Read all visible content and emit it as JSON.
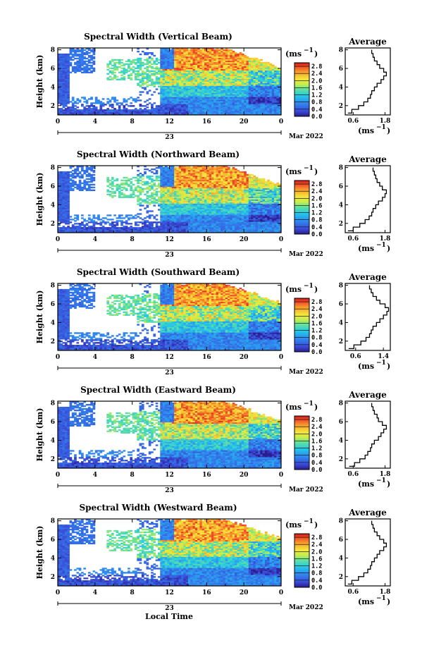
{
  "figure": {
    "xlabel_bottom": "Local Time",
    "unit_label": "(ms",
    "unit_exp": "−1",
    "avg_title": "Average",
    "date_label": "Mar 2022",
    "day_label": "23"
  },
  "chart_data": [
    {
      "type": "heatmap",
      "title": "Spectral Width (Vertical Beam)",
      "ylabel": "Height (km)",
      "x_ticks": [
        "0",
        "4",
        "8",
        "12",
        "16",
        "20",
        "0"
      ],
      "y_ticks": [
        "2",
        "4",
        "6",
        "8"
      ],
      "xlim": [
        0,
        24
      ],
      "ylim": [
        1,
        8.2
      ],
      "colorbar": {
        "ticks": [
          "0.0",
          "0.4",
          "0.8",
          "1.2",
          "1.6",
          "2.0",
          "2.4",
          "2.8"
        ],
        "range": [
          0,
          3.0
        ]
      },
      "profile": {
        "title": "Average",
        "x_ticks": [
          "0.6",
          "1.8"
        ],
        "xlim": [
          0.3,
          2.0
        ],
        "points": [
          [
            0.4,
            1.2
          ],
          [
            0.55,
            1.6
          ],
          [
            0.8,
            2.0
          ],
          [
            1.0,
            2.4
          ],
          [
            1.15,
            2.8
          ],
          [
            1.25,
            3.2
          ],
          [
            1.3,
            3.6
          ],
          [
            1.4,
            4.0
          ],
          [
            1.5,
            4.4
          ],
          [
            1.65,
            4.8
          ],
          [
            1.75,
            5.2
          ],
          [
            1.85,
            5.6
          ],
          [
            1.75,
            6.0
          ],
          [
            1.6,
            6.4
          ],
          [
            1.5,
            6.8
          ],
          [
            1.4,
            7.2
          ],
          [
            1.35,
            7.6
          ],
          [
            1.3,
            8.0
          ]
        ]
      }
    },
    {
      "type": "heatmap",
      "title": "Spectral Width (Northward Beam)",
      "ylabel": "Height (km)",
      "x_ticks": [
        "0",
        "4",
        "8",
        "12",
        "16",
        "20",
        "0"
      ],
      "y_ticks": [
        "2",
        "4",
        "6",
        "8"
      ],
      "xlim": [
        0,
        24
      ],
      "ylim": [
        1,
        8.2
      ],
      "colorbar": {
        "ticks": [
          "0.0",
          "0.4",
          "0.8",
          "1.2",
          "1.6",
          "2.0",
          "2.4",
          "2.8"
        ],
        "range": [
          0,
          3.0
        ]
      },
      "profile": {
        "title": "Average",
        "x_ticks": [
          "0.6",
          "1.8"
        ],
        "xlim": [
          0.3,
          2.0
        ],
        "points": [
          [
            0.4,
            1.2
          ],
          [
            0.6,
            1.6
          ],
          [
            0.85,
            2.0
          ],
          [
            1.05,
            2.4
          ],
          [
            1.2,
            2.8
          ],
          [
            1.3,
            3.2
          ],
          [
            1.35,
            3.6
          ],
          [
            1.45,
            4.0
          ],
          [
            1.55,
            4.4
          ],
          [
            1.7,
            4.8
          ],
          [
            1.8,
            5.2
          ],
          [
            1.85,
            5.6
          ],
          [
            1.7,
            6.0
          ],
          [
            1.6,
            6.4
          ],
          [
            1.5,
            6.8
          ],
          [
            1.45,
            7.2
          ],
          [
            1.4,
            7.6
          ],
          [
            1.35,
            8.0
          ]
        ]
      }
    },
    {
      "type": "heatmap",
      "title": "Spectral Width (Southward Beam)",
      "ylabel": "Height (km)",
      "x_ticks": [
        "0",
        "4",
        "8",
        "12",
        "16",
        "20",
        "0"
      ],
      "y_ticks": [
        "2",
        "4",
        "6",
        "8"
      ],
      "xlim": [
        0,
        24
      ],
      "ylim": [
        1,
        8.2
      ],
      "colorbar": {
        "ticks": [
          "0.0",
          "0.4",
          "0.8",
          "1.2",
          "1.6",
          "2.0",
          "2.4",
          "2.8"
        ],
        "range": [
          0,
          3.0
        ]
      },
      "profile": {
        "title": "Average",
        "x_ticks": [
          "0.6",
          "1.4"
        ],
        "xlim": [
          0.3,
          1.6
        ],
        "points": [
          [
            0.4,
            1.2
          ],
          [
            0.55,
            1.6
          ],
          [
            0.75,
            2.0
          ],
          [
            0.9,
            2.4
          ],
          [
            1.0,
            2.8
          ],
          [
            1.05,
            3.2
          ],
          [
            1.1,
            3.6
          ],
          [
            1.2,
            4.0
          ],
          [
            1.3,
            4.4
          ],
          [
            1.4,
            4.8
          ],
          [
            1.5,
            5.2
          ],
          [
            1.55,
            5.6
          ],
          [
            1.45,
            6.0
          ],
          [
            1.3,
            6.4
          ],
          [
            1.2,
            6.8
          ],
          [
            1.1,
            7.2
          ],
          [
            1.05,
            7.6
          ],
          [
            1.0,
            8.0
          ]
        ]
      }
    },
    {
      "type": "heatmap",
      "title": "Spectral Width (Eastward Beam)",
      "ylabel": "Height (km)",
      "x_ticks": [
        "0",
        "4",
        "8",
        "12",
        "16",
        "20",
        "0"
      ],
      "y_ticks": [
        "2",
        "4",
        "6",
        "8"
      ],
      "xlim": [
        0,
        24
      ],
      "ylim": [
        1,
        8.2
      ],
      "colorbar": {
        "ticks": [
          "0.0",
          "0.4",
          "0.8",
          "1.2",
          "1.6",
          "2.0",
          "2.4",
          "2.8"
        ],
        "range": [
          0,
          3.0
        ]
      },
      "profile": {
        "title": "Average",
        "x_ticks": [
          "0.6",
          "1.8"
        ],
        "xlim": [
          0.3,
          2.0
        ],
        "points": [
          [
            0.45,
            1.2
          ],
          [
            0.65,
            1.6
          ],
          [
            0.85,
            2.0
          ],
          [
            1.05,
            2.4
          ],
          [
            1.15,
            2.8
          ],
          [
            1.25,
            3.2
          ],
          [
            1.3,
            3.6
          ],
          [
            1.4,
            4.0
          ],
          [
            1.55,
            4.4
          ],
          [
            1.65,
            4.8
          ],
          [
            1.75,
            5.2
          ],
          [
            1.85,
            5.6
          ],
          [
            1.7,
            6.0
          ],
          [
            1.55,
            6.4
          ],
          [
            1.5,
            6.8
          ],
          [
            1.4,
            7.2
          ],
          [
            1.35,
            7.6
          ],
          [
            1.3,
            8.0
          ]
        ]
      }
    },
    {
      "type": "heatmap",
      "title": "Spectral Width (Westward Beam)",
      "ylabel": "Height (km)",
      "x_ticks": [
        "0",
        "4",
        "8",
        "12",
        "16",
        "20",
        "0"
      ],
      "y_ticks": [
        "2",
        "4",
        "6",
        "8"
      ],
      "xlim": [
        0,
        24
      ],
      "ylim": [
        1,
        8.2
      ],
      "colorbar": {
        "ticks": [
          "0.0",
          "0.4",
          "0.8",
          "1.2",
          "1.6",
          "2.0",
          "2.4",
          "2.8"
        ],
        "range": [
          0,
          3.0
        ]
      },
      "profile": {
        "title": "Average",
        "x_ticks": [
          "0.6",
          "1.8"
        ],
        "xlim": [
          0.3,
          2.0
        ],
        "points": [
          [
            0.4,
            1.2
          ],
          [
            0.55,
            1.6
          ],
          [
            0.8,
            2.0
          ],
          [
            1.0,
            2.4
          ],
          [
            1.15,
            2.8
          ],
          [
            1.25,
            3.2
          ],
          [
            1.3,
            3.6
          ],
          [
            1.4,
            4.0
          ],
          [
            1.5,
            4.4
          ],
          [
            1.6,
            4.8
          ],
          [
            1.75,
            5.2
          ],
          [
            1.85,
            5.6
          ],
          [
            1.75,
            6.0
          ],
          [
            1.6,
            6.4
          ],
          [
            1.5,
            6.8
          ],
          [
            1.4,
            7.2
          ],
          [
            1.35,
            7.6
          ],
          [
            1.3,
            8.0
          ]
        ]
      }
    }
  ]
}
